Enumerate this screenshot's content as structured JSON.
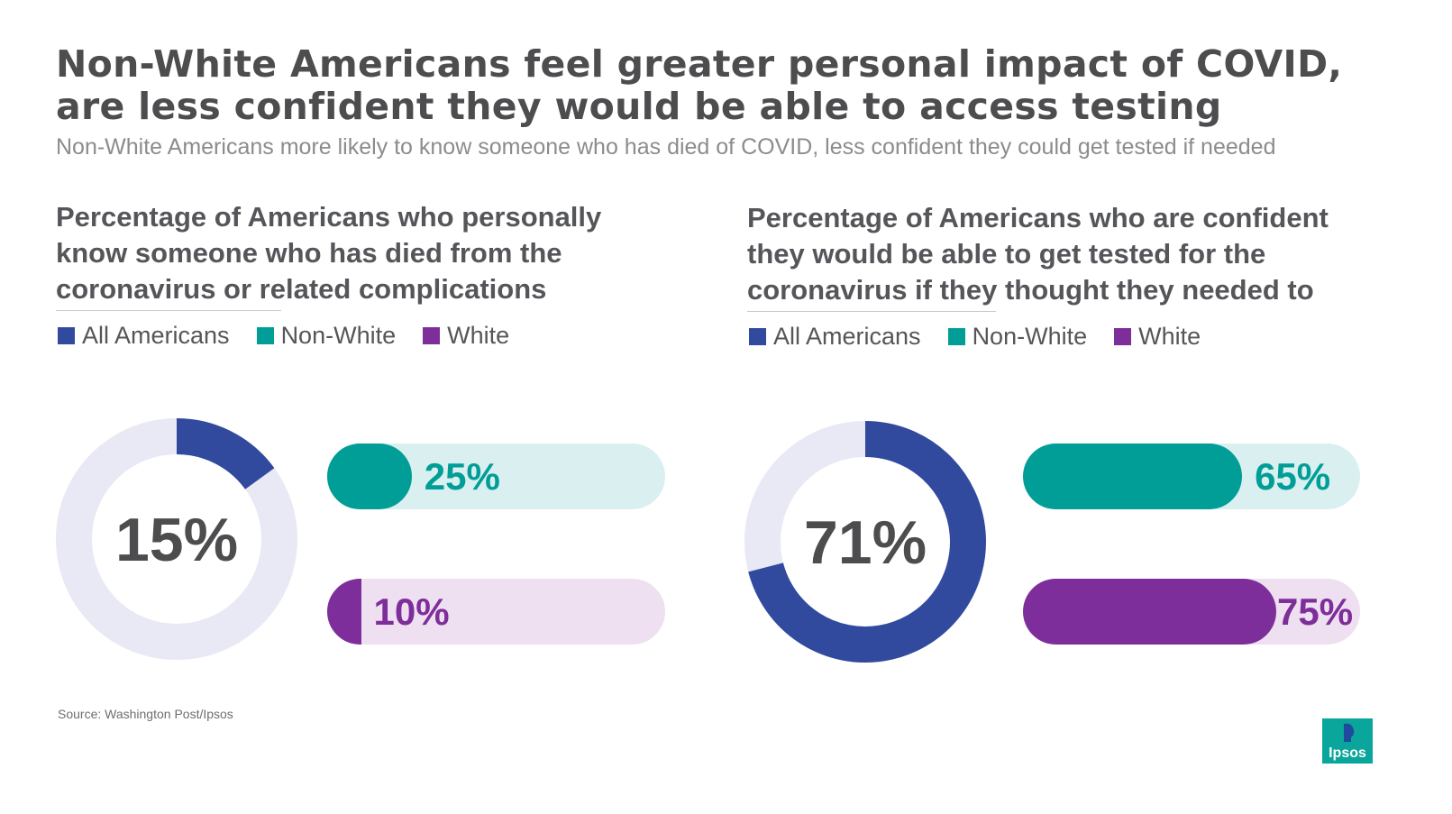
{
  "title_line1": "Non-White Americans feel greater personal impact of COVID,",
  "title_line2": "are less confident they would be able to access testing",
  "subtitle": "Non-White Americans more likely to know someone who has died of COVID, less confident they could get tested if needed",
  "source": "Source: Washington Post/Ipsos",
  "logo_text": "Ipsos",
  "colors": {
    "all_americans": "#324a9e",
    "non_white": "#009e96",
    "white": "#7e2e9a",
    "donut_track": "#e8e9f4",
    "non_white_track": "#d9eff0",
    "white_track": "#eee0f0",
    "logo": "#0aa59b",
    "logo_dark": "#1f4a9e"
  },
  "chart_data": [
    {
      "type": "donut+bar",
      "title": "Percentage of Americans who personally know someone who has died from the coronavirus or related complications",
      "title_lines": [
        "Percentage of Americans who personally",
        "know someone who has died from the",
        "coronavirus or related complications"
      ],
      "legend": [
        "All Americans",
        "Non-White",
        "White"
      ],
      "all_americans": {
        "value": 15,
        "label": "15%"
      },
      "bars": [
        {
          "name": "Non-White",
          "value": 25,
          "label": "25%"
        },
        {
          "name": "White",
          "value": 10,
          "label": "10%"
        }
      ],
      "unit": "%",
      "max": 100
    },
    {
      "type": "donut+bar",
      "title": "Percentage of Americans who are confident they would be able to get tested for the coronavirus if they thought they needed to",
      "title_lines": [
        "Percentage of Americans who are confident",
        "they would be able to get tested for the",
        "coronavirus if they thought they needed to"
      ],
      "legend": [
        "All Americans",
        "Non-White",
        "White"
      ],
      "all_americans": {
        "value": 71,
        "label": "71%"
      },
      "bars": [
        {
          "name": "Non-White",
          "value": 65,
          "label": "65%"
        },
        {
          "name": "White",
          "value": 75,
          "label": "75%"
        }
      ],
      "unit": "%",
      "max": 100
    }
  ]
}
